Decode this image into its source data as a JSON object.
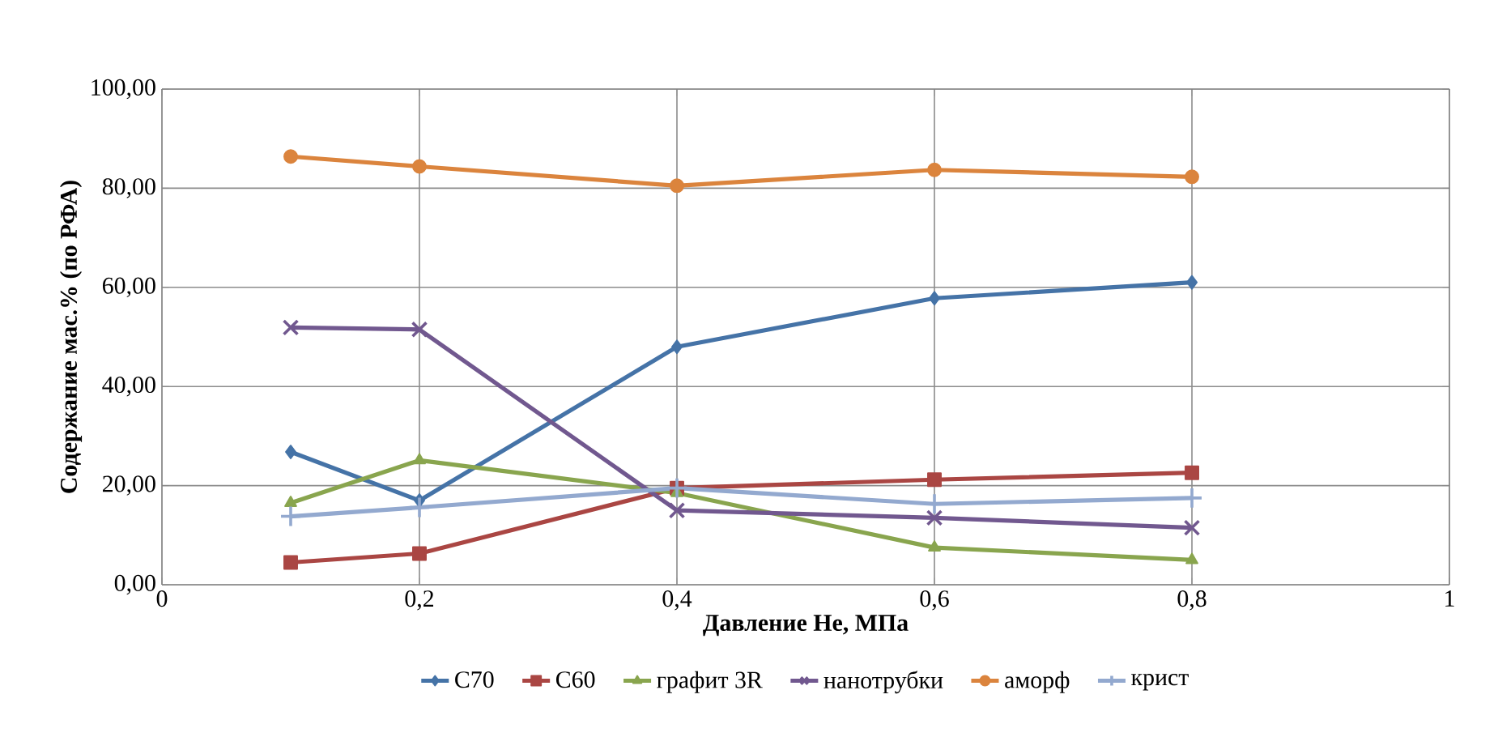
{
  "chart_data": {
    "type": "line",
    "xlabel": "Давление Не, МПа",
    "ylabel": "Содержание мас.% (по РФА)",
    "x": [
      0.1,
      0.2,
      0.4,
      0.6,
      0.8
    ],
    "xlim": [
      0,
      1
    ],
    "xticks": [
      0,
      {
        "value": 0.2,
        "label": "0,2"
      },
      {
        "value": 0.4,
        "label": "0,4"
      },
      {
        "value": 0.6,
        "label": "0,6"
      },
      {
        "value": 0.8,
        "label": "0,8"
      },
      1
    ],
    "ylim": [
      0,
      100
    ],
    "yticks": [
      {
        "value": 0,
        "label": "0,00"
      },
      {
        "value": 20,
        "label": "20,00"
      },
      {
        "value": 40,
        "label": "40,00"
      },
      {
        "value": 60,
        "label": "60,00"
      },
      {
        "value": 80,
        "label": "80,00"
      },
      {
        "value": 100,
        "label": "100,00"
      }
    ],
    "grid": true,
    "legend": "bottom",
    "line_style": "solid",
    "series": [
      {
        "name": "C70",
        "color": "#4573a7",
        "marker": "diamond",
        "values": [
          26.8,
          17.0,
          48.0,
          57.8,
          61.0
        ]
      },
      {
        "name": "C60",
        "color": "#aa4643",
        "marker": "square",
        "values": [
          4.5,
          6.3,
          19.5,
          21.2,
          22.6
        ]
      },
      {
        "name": "графит 3R",
        "color": "#89a54e",
        "marker": "triangle",
        "values": [
          16.5,
          25.1,
          18.5,
          7.5,
          5.0
        ]
      },
      {
        "name": "нанотрубки",
        "color": "#71588f",
        "marker": "cross",
        "values": [
          51.9,
          51.5,
          15.0,
          13.5,
          11.5
        ]
      },
      {
        "name": "аморф",
        "color": "#db843d",
        "marker": "circle",
        "values": [
          86.4,
          84.4,
          80.5,
          83.7,
          82.3
        ]
      },
      {
        "name": "крист",
        "color": "#93a9cf",
        "marker": "plus",
        "values": [
          13.8,
          15.6,
          19.5,
          16.3,
          17.5
        ]
      }
    ]
  }
}
